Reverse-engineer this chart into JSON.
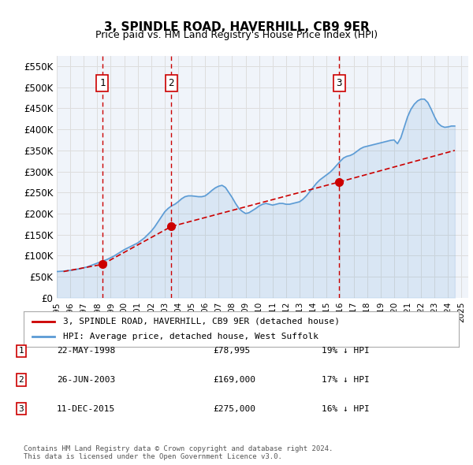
{
  "title": "3, SPINDLE ROAD, HAVERHILL, CB9 9ER",
  "subtitle": "Price paid vs. HM Land Registry's House Price Index (HPI)",
  "ylabel_ticks": [
    "£0",
    "£50K",
    "£100K",
    "£150K",
    "£200K",
    "£250K",
    "£300K",
    "£350K",
    "£400K",
    "£450K",
    "£500K",
    "£550K"
  ],
  "ytick_values": [
    0,
    50000,
    100000,
    150000,
    200000,
    250000,
    300000,
    350000,
    400000,
    450000,
    500000,
    550000
  ],
  "ylim": [
    0,
    575000
  ],
  "xlim_start": 1995.0,
  "xlim_end": 2025.5,
  "transactions": [
    {
      "num": 1,
      "date": "22-MAY-1998",
      "price": 78995,
      "year": 1998.38,
      "pct": "19% ↓ HPI"
    },
    {
      "num": 2,
      "date": "26-JUN-2003",
      "price": 169000,
      "year": 2003.48,
      "pct": "17% ↓ HPI"
    },
    {
      "num": 3,
      "date": "11-DEC-2015",
      "price": 275000,
      "year": 2015.94,
      "pct": "16% ↓ HPI"
    }
  ],
  "hpi_color": "#5b9bd5",
  "property_color": "#cc0000",
  "vline_color": "#cc0000",
  "grid_color": "#dddddd",
  "background_color": "#ffffff",
  "plot_bg_color": "#f0f4fa",
  "legend_label_property": "3, SPINDLE ROAD, HAVERHILL, CB9 9ER (detached house)",
  "legend_label_hpi": "HPI: Average price, detached house, West Suffolk",
  "footer": "Contains HM Land Registry data © Crown copyright and database right 2024.\nThis data is licensed under the Open Government Licence v3.0.",
  "hpi_data_x": [
    1995.0,
    1995.25,
    1995.5,
    1995.75,
    1996.0,
    1996.25,
    1996.5,
    1996.75,
    1997.0,
    1997.25,
    1997.5,
    1997.75,
    1998.0,
    1998.25,
    1998.5,
    1998.75,
    1999.0,
    1999.25,
    1999.5,
    1999.75,
    2000.0,
    2000.25,
    2000.5,
    2000.75,
    2001.0,
    2001.25,
    2001.5,
    2001.75,
    2002.0,
    2002.25,
    2002.5,
    2002.75,
    2003.0,
    2003.25,
    2003.5,
    2003.75,
    2004.0,
    2004.25,
    2004.5,
    2004.75,
    2005.0,
    2005.25,
    2005.5,
    2005.75,
    2006.0,
    2006.25,
    2006.5,
    2006.75,
    2007.0,
    2007.25,
    2007.5,
    2007.75,
    2008.0,
    2008.25,
    2008.5,
    2008.75,
    2009.0,
    2009.25,
    2009.5,
    2009.75,
    2010.0,
    2010.25,
    2010.5,
    2010.75,
    2011.0,
    2011.25,
    2011.5,
    2011.75,
    2012.0,
    2012.25,
    2012.5,
    2012.75,
    2013.0,
    2013.25,
    2013.5,
    2013.75,
    2014.0,
    2014.25,
    2014.5,
    2014.75,
    2015.0,
    2015.25,
    2015.5,
    2015.75,
    2016.0,
    2016.25,
    2016.5,
    2016.75,
    2017.0,
    2017.25,
    2017.5,
    2017.75,
    2018.0,
    2018.25,
    2018.5,
    2018.75,
    2019.0,
    2019.25,
    2019.5,
    2019.75,
    2020.0,
    2020.25,
    2020.5,
    2020.75,
    2021.0,
    2021.25,
    2021.5,
    2021.75,
    2022.0,
    2022.25,
    2022.5,
    2022.75,
    2023.0,
    2023.25,
    2023.5,
    2023.75,
    2024.0,
    2024.25,
    2024.5
  ],
  "hpi_data_y": [
    62000,
    62500,
    63000,
    64000,
    65000,
    66000,
    67500,
    69000,
    71000,
    73000,
    76000,
    79000,
    82000,
    85000,
    88000,
    91000,
    95000,
    99000,
    104000,
    109000,
    114000,
    118000,
    122000,
    126000,
    130000,
    136000,
    142000,
    150000,
    158000,
    168000,
    180000,
    192000,
    204000,
    212000,
    218000,
    222000,
    228000,
    235000,
    240000,
    242000,
    242000,
    241000,
    240000,
    240000,
    242000,
    248000,
    255000,
    261000,
    265000,
    267000,
    262000,
    250000,
    238000,
    224000,
    212000,
    205000,
    200000,
    202000,
    207000,
    212000,
    218000,
    222000,
    224000,
    222000,
    220000,
    222000,
    224000,
    224000,
    222000,
    222000,
    224000,
    226000,
    228000,
    234000,
    242000,
    252000,
    262000,
    272000,
    280000,
    286000,
    292000,
    298000,
    306000,
    315000,
    324000,
    332000,
    336000,
    338000,
    342000,
    348000,
    354000,
    358000,
    360000,
    362000,
    364000,
    366000,
    368000,
    370000,
    372000,
    374000,
    375000,
    366000,
    380000,
    405000,
    430000,
    448000,
    460000,
    468000,
    472000,
    472000,
    464000,
    448000,
    430000,
    415000,
    408000,
    405000,
    406000,
    408000,
    408000
  ],
  "property_data_x": [
    1995.5,
    1998.38,
    2003.48,
    2015.94,
    2024.5
  ],
  "property_data_y": [
    62000,
    78995,
    169000,
    275000,
    350000
  ]
}
